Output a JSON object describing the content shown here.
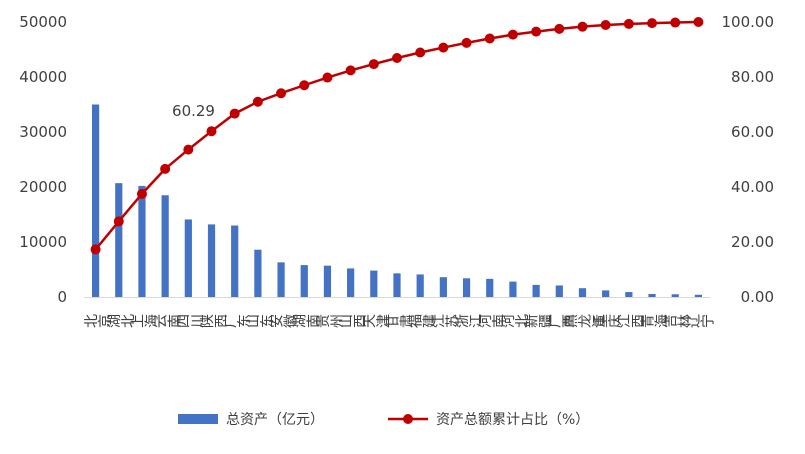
{
  "chart_data": {
    "type": "bar",
    "categories": [
      "北京",
      "湖北",
      "上海",
      "云南",
      "四川",
      "陕西",
      "广东",
      "山东",
      "安徽",
      "湖南",
      "贵州",
      "山西",
      "天津",
      "甘肃",
      "福建",
      "江苏",
      "浙江",
      "河南",
      "河北",
      "新疆",
      "广西",
      "黑龙江",
      "重庆",
      "江西",
      "青海",
      "吉林",
      "辽宁"
    ],
    "series": [
      {
        "name": "总资产（亿元）",
        "type": "bar",
        "axis": "left",
        "color": "#4472C4",
        "values": [
          35000,
          20700,
          20200,
          18500,
          14100,
          13200,
          13000,
          8600,
          6300,
          5800,
          5700,
          5200,
          4800,
          4300,
          4100,
          3600,
          3400,
          3300,
          2800,
          2200,
          2100,
          1600,
          1200,
          900,
          550,
          500,
          400
        ]
      },
      {
        "name": "资产总额累计占比（%）",
        "type": "line",
        "axis": "right",
        "color": "#C00000",
        "values": [
          17.3,
          27.5,
          37.5,
          46.6,
          53.6,
          60.29,
          66.7,
          71.0,
          74.1,
          77.0,
          79.8,
          82.4,
          84.7,
          86.9,
          88.9,
          90.7,
          92.4,
          94.0,
          95.4,
          96.5,
          97.5,
          98.3,
          98.9,
          99.3,
          99.6,
          99.8,
          100.0
        ]
      }
    ],
    "ylim_left": [
      0,
      50000
    ],
    "yticks_left": [
      "0",
      "10000",
      "20000",
      "30000",
      "40000",
      "50000"
    ],
    "ylim_right": [
      0,
      100
    ],
    "yticks_right": [
      "0.00",
      "20.00",
      "40.00",
      "60.00",
      "80.00",
      "100.00"
    ],
    "data_labels": [
      {
        "series": 1,
        "index": 5,
        "text": "60.29"
      }
    ],
    "legend_position": "bottom",
    "grid": false
  }
}
